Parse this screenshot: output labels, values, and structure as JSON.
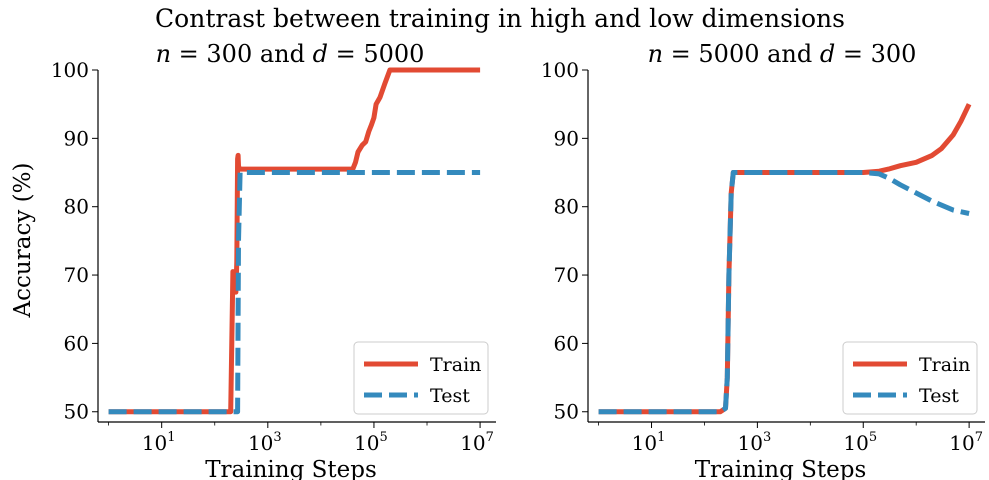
{
  "figure": {
    "suptitle": "Contrast between training in high and low dimensions",
    "ylabel": "Accuracy (%)"
  },
  "chart_data": [
    {
      "type": "line",
      "title_parts": [
        "n",
        " = 300 and ",
        "d",
        " = 5000"
      ],
      "xlabel": "Training Steps",
      "ylabel": "Accuracy (%)",
      "x_scale": "log",
      "xlim_log10": [
        -0.2,
        7.3
      ],
      "ylim": [
        48.5,
        100
      ],
      "x_tick_labels": [
        {
          "base": "10",
          "exp": "1",
          "log10": 1
        },
        {
          "base": "10",
          "exp": "3",
          "log10": 3
        },
        {
          "base": "10",
          "exp": "5",
          "log10": 5
        },
        {
          "base": "10",
          "exp": "7",
          "log10": 7
        }
      ],
      "y_ticks": [
        50,
        60,
        70,
        80,
        90,
        100
      ],
      "grid": false,
      "legend_position": "lower right",
      "series": [
        {
          "name": "Train",
          "color": "#E24A33",
          "style": "solid",
          "x": [
            1,
            10,
            100,
            200,
            220,
            230,
            240,
            250,
            260,
            270,
            275,
            280,
            290,
            300,
            350,
            1000,
            10000,
            30000,
            40000,
            45000,
            50000,
            60000,
            70000,
            80000,
            90000,
            100000,
            110000,
            130000,
            160000,
            200000,
            300000,
            1000000,
            10000000
          ],
          "y": [
            50,
            50,
            50,
            50,
            70.5,
            68,
            70,
            67.5,
            72,
            87,
            87.5,
            86,
            85.5,
            85.5,
            85.5,
            85.5,
            85.5,
            85.5,
            85.5,
            86.5,
            88,
            89,
            89.5,
            91,
            92,
            93,
            95,
            96,
            98,
            100,
            100,
            100,
            100
          ]
        },
        {
          "name": "Test",
          "color": "#348ABD",
          "style": "dashed",
          "x": [
            1,
            10,
            100,
            200,
            240,
            270,
            280,
            300,
            400,
            1000,
            10000,
            100000,
            1000000,
            10000000
          ],
          "y": [
            50,
            50,
            50,
            50,
            50,
            50,
            75,
            85,
            85,
            85,
            85,
            85,
            85,
            85
          ]
        }
      ]
    },
    {
      "type": "line",
      "title_parts": [
        "n",
        " = 5000 and ",
        "d",
        " = 300"
      ],
      "xlabel": "Training Steps",
      "ylabel": "",
      "x_scale": "log",
      "xlim_log10": [
        -0.2,
        7.3
      ],
      "ylim": [
        48.5,
        100
      ],
      "x_tick_labels": [
        {
          "base": "10",
          "exp": "1",
          "log10": 1
        },
        {
          "base": "10",
          "exp": "3",
          "log10": 3
        },
        {
          "base": "10",
          "exp": "5",
          "log10": 5
        },
        {
          "base": "10",
          "exp": "7",
          "log10": 7
        }
      ],
      "y_ticks": [
        50,
        60,
        70,
        80,
        90,
        100
      ],
      "grid": false,
      "legend_position": "lower right",
      "series": [
        {
          "name": "Train",
          "color": "#E24A33",
          "style": "solid",
          "x": [
            1,
            10,
            100,
            200,
            250,
            270,
            290,
            320,
            350,
            400,
            1000,
            10000,
            100000,
            200000,
            300000,
            500000,
            1000000,
            2000000,
            3000000,
            5000000,
            7000000,
            10000000
          ],
          "y": [
            50,
            50,
            50,
            50,
            50.5,
            55,
            70,
            82,
            85,
            85,
            85,
            85,
            85,
            85.2,
            85.5,
            86,
            86.5,
            87.5,
            88.5,
            90.5,
            92.5,
            95
          ]
        },
        {
          "name": "Test",
          "color": "#348ABD",
          "style": "dashed",
          "x": [
            1,
            10,
            100,
            200,
            250,
            270,
            290,
            320,
            350,
            400,
            1000,
            10000,
            100000,
            200000,
            300000,
            500000,
            1000000,
            2000000,
            5000000,
            10000000
          ],
          "y": [
            50,
            50,
            50,
            50,
            50.5,
            55,
            70,
            82,
            85,
            85,
            85,
            85,
            85,
            84.8,
            84.2,
            83.2,
            82,
            80.8,
            79.5,
            79
          ]
        }
      ]
    }
  ]
}
